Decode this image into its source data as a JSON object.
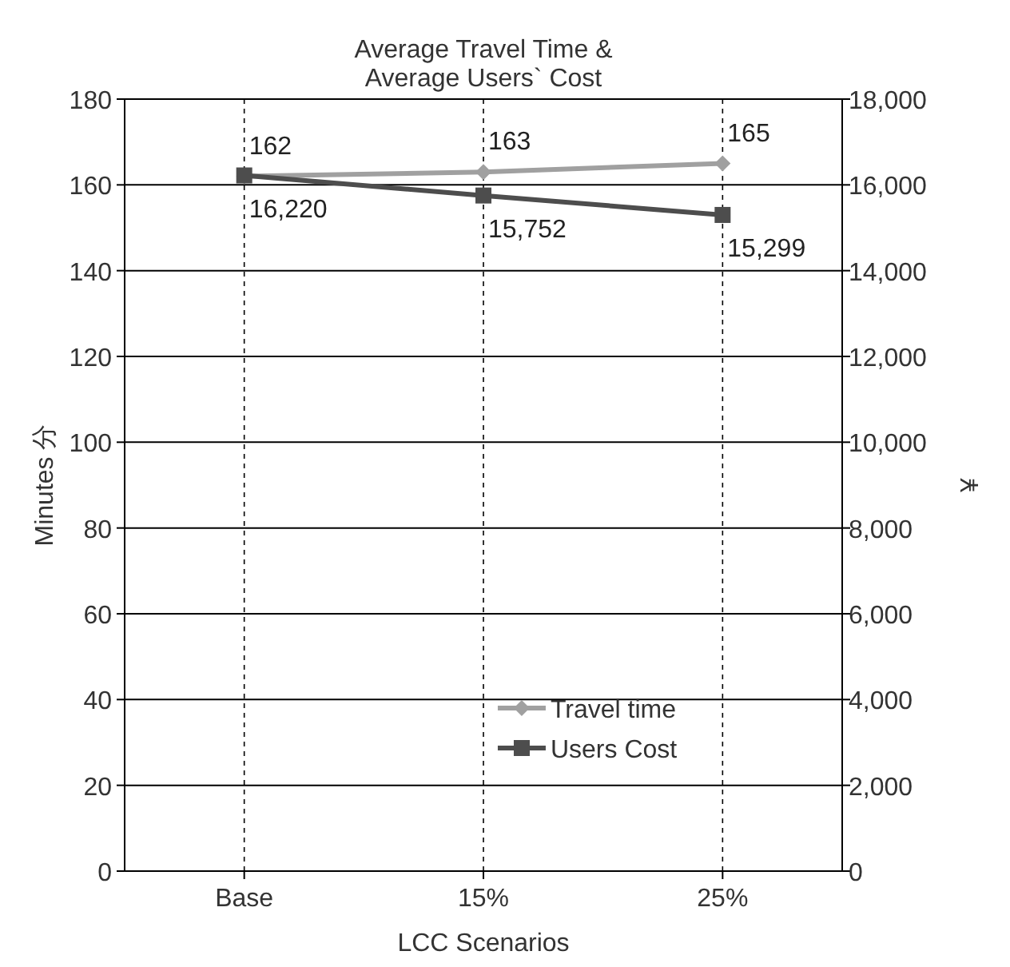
{
  "chart_data": {
    "type": "line",
    "title": "Average Travel Time &\nAverage Users` Cost",
    "xlabel": "LCC Scenarios",
    "ylabel": "Minutes 分",
    "y2label": "¥",
    "categories": [
      "Base",
      "15%",
      "25%"
    ],
    "ylim": [
      0,
      180
    ],
    "yticks": [
      0,
      20,
      40,
      60,
      80,
      100,
      120,
      140,
      160,
      180
    ],
    "y2lim": [
      0,
      18000
    ],
    "y2ticks": [
      {
        "value": 0,
        "label": "0"
      },
      {
        "value": 2000,
        "label": "2,000"
      },
      {
        "value": 4000,
        "label": "4,000"
      },
      {
        "value": 6000,
        "label": "6,000"
      },
      {
        "value": 8000,
        "label": "8,000"
      },
      {
        "value": 10000,
        "label": "10,000"
      },
      {
        "value": 12000,
        "label": "12,000"
      },
      {
        "value": 14000,
        "label": "14,000"
      },
      {
        "value": 16000,
        "label": "16,000"
      },
      {
        "value": 18000,
        "label": "18,000"
      }
    ],
    "grid": true,
    "legend": "bottom right",
    "series": [
      {
        "name": "Travel time",
        "color": "#a0a0a0",
        "marker": "diamond",
        "values": [
          162,
          163,
          165
        ],
        "value_labels": [
          "162",
          "163",
          "165"
        ]
      },
      {
        "name": "Users Cost",
        "color": "#4d4d4d",
        "marker": "square",
        "axis": "y2",
        "values": [
          16220,
          15752,
          15299
        ],
        "value_labels": [
          "16,220",
          "15,752",
          "15,299"
        ]
      }
    ]
  }
}
